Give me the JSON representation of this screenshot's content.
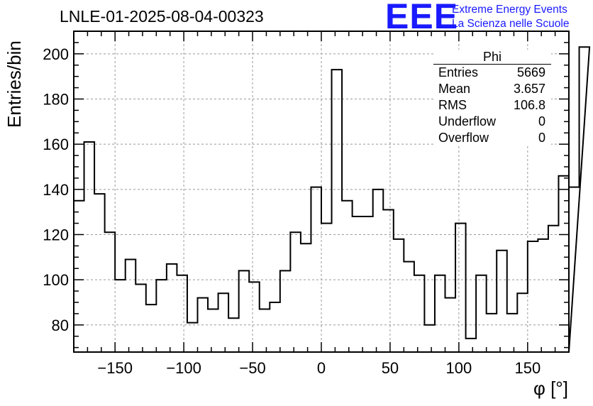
{
  "header": {
    "title": "LNLE-01-2025-08-04-00323",
    "logo": "EEE",
    "logo_line1": "Extreme Energy Events",
    "logo_line2": "La Scienza nelle Scuole"
  },
  "stats": {
    "title": "Phi",
    "rows": [
      {
        "label": "Entries",
        "value": "5669"
      },
      {
        "label": "Mean",
        "value": "3.657"
      },
      {
        "label": "RMS",
        "value": "106.8"
      },
      {
        "label": "Underflow",
        "value": "0"
      },
      {
        "label": "Overflow",
        "value": "0"
      }
    ]
  },
  "chart_data": {
    "type": "histogram",
    "title": "LNLE-01-2025-08-04-00323",
    "xlabel": "φ [°]",
    "ylabel": "Entries/bin",
    "xlim": [
      -180,
      180
    ],
    "ylim": [
      68,
      210
    ],
    "bin_width": 7.5,
    "grid": true,
    "xticks": [
      -150,
      -100,
      -50,
      0,
      50,
      100,
      150
    ],
    "xtick_labels": [
      "−150",
      "−100",
      "−50",
      "0",
      "50",
      "100",
      "150"
    ],
    "yticks": [
      80,
      100,
      120,
      140,
      160,
      180,
      200
    ],
    "ytick_labels": [
      "80",
      "100",
      "120",
      "140",
      "160",
      "180",
      "200"
    ],
    "values": [
      135,
      161,
      138,
      121,
      100,
      109,
      98,
      89,
      100,
      107,
      102,
      81,
      92,
      87,
      94,
      83,
      104,
      99,
      87,
      90,
      104,
      121,
      116,
      141,
      125,
      193,
      135,
      128,
      128,
      140,
      131,
      118,
      108,
      102,
      80,
      102,
      92,
      125,
      74,
      102,
      85,
      113,
      85,
      94,
      117,
      118,
      124,
      146,
      141,
      203
    ]
  }
}
